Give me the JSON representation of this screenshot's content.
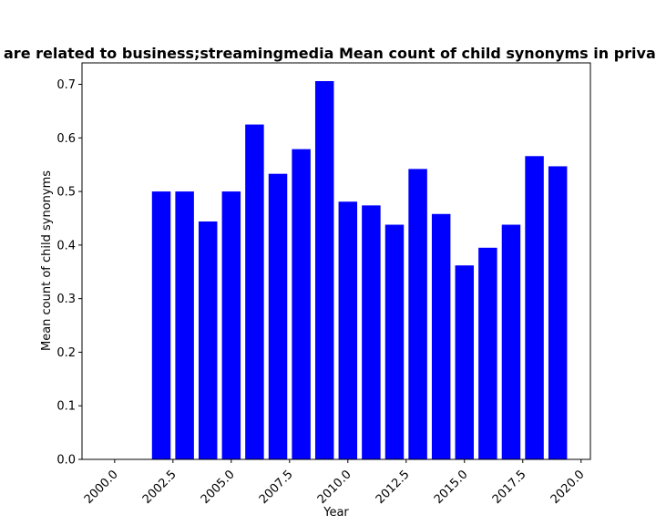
{
  "chart_data": {
    "type": "bar",
    "title": "are related to business;streamingmedia Mean count of child synonyms in priva",
    "xlabel": "Year",
    "ylabel": "Mean count of child synonyms",
    "x": [
      2002,
      2003,
      2004,
      2005,
      2006,
      2007,
      2008,
      2009,
      2010,
      2011,
      2012,
      2013,
      2014,
      2015,
      2016,
      2017,
      2018,
      2019
    ],
    "values": [
      0.5,
      0.5,
      0.444,
      0.5,
      0.625,
      0.533,
      0.579,
      0.706,
      0.481,
      0.474,
      0.438,
      0.542,
      0.458,
      0.362,
      0.395,
      0.438,
      0.566,
      0.547
    ],
    "xlim": [
      1998.6,
      2020.4
    ],
    "ylim": [
      0,
      0.74
    ],
    "x_ticks": [
      2000.0,
      2002.5,
      2005.0,
      2007.5,
      2010.0,
      2012.5,
      2015.0,
      2017.5,
      2020.0
    ],
    "x_tick_labels": [
      "2000.0",
      "2002.5",
      "2005.0",
      "2007.5",
      "2010.0",
      "2012.5",
      "2015.0",
      "2017.5",
      "2020.0"
    ],
    "y_ticks": [
      0.0,
      0.1,
      0.2,
      0.3,
      0.4,
      0.5,
      0.6,
      0.7
    ],
    "y_tick_labels": [
      "0.0",
      "0.1",
      "0.2",
      "0.3",
      "0.4",
      "0.5",
      "0.6",
      "0.7"
    ],
    "bar_width": 0.8,
    "bar_color": "#0000ff",
    "grid": false,
    "x_tick_rotation_deg": 45
  }
}
